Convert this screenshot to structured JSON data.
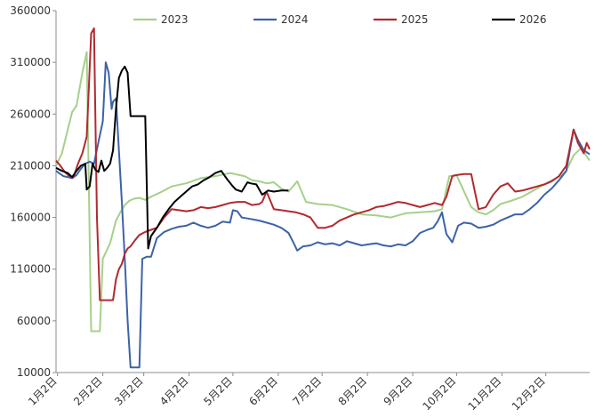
{
  "chart_data": {
    "type": "line",
    "title": "",
    "xlabel": "",
    "ylabel": "",
    "ylim": [
      10000,
      360000
    ],
    "yticks": [
      10000,
      60000,
      110000,
      160000,
      210000,
      260000,
      310000,
      360000
    ],
    "ytick_labels": [
      "10000",
      "60000",
      "110000",
      "160000",
      "210000",
      "260000",
      "310000",
      "360000"
    ],
    "xticks": [
      "1月2日",
      "2月2日",
      "3月2日",
      "4月2日",
      "5月2日",
      "6月2日",
      "7月2日",
      "8月2日",
      "9月2日",
      "10月2日",
      "11月2日",
      "12月2日"
    ],
    "x_unit": "day-of-year",
    "xlim": [
      1,
      366
    ],
    "grid": false,
    "legend": "top",
    "colors": {
      "2023": "#a6d08a",
      "2024": "#3b63a8",
      "2025": "#b2292e",
      "2026": "#000000"
    },
    "series": [
      {
        "name": "2023",
        "color": "#a6d08a",
        "x": [
          1,
          5,
          9,
          12,
          15,
          19,
          22,
          25,
          28,
          31,
          33,
          38,
          42,
          45,
          48,
          51,
          54,
          58,
          62,
          66,
          72,
          80,
          90,
          100,
          110,
          120,
          130,
          135,
          140,
          145,
          150,
          155,
          160,
          166,
          172,
          180,
          190,
          200,
          210,
          220,
          230,
          240,
          250,
          260,
          265,
          270,
          275,
          285,
          290,
          295,
          300,
          305,
          312,
          320,
          330,
          340,
          346,
          350,
          355,
          360,
          366
        ],
        "y": [
          210000,
          222000,
          245000,
          262000,
          268000,
          300000,
          320000,
          50000,
          50000,
          50000,
          120000,
          135000,
          157000,
          165000,
          172000,
          176000,
          178000,
          179000,
          177000,
          180000,
          184000,
          190000,
          193000,
          198000,
          200000,
          203000,
          200000,
          196000,
          195000,
          193000,
          194000,
          188000,
          185000,
          195000,
          175000,
          173000,
          172000,
          168000,
          163000,
          162000,
          160000,
          164000,
          165000,
          166000,
          168000,
          200000,
          201000,
          170000,
          165000,
          163000,
          167000,
          173000,
          176000,
          180000,
          188000,
          196000,
          200000,
          205000,
          220000,
          227000,
          215000
        ]
      },
      {
        "name": "2024",
        "color": "#3b63a8",
        "x": [
          1,
          3,
          6,
          9,
          12,
          15,
          18,
          21,
          24,
          27,
          30,
          33,
          35,
          37,
          39,
          40,
          42,
          44,
          46,
          48,
          50,
          52,
          55,
          58,
          60,
          63,
          66,
          70,
          75,
          80,
          85,
          90,
          95,
          100,
          105,
          110,
          115,
          120,
          122,
          125,
          128,
          132,
          136,
          140,
          145,
          150,
          155,
          160,
          164,
          166,
          170,
          175,
          180,
          185,
          190,
          195,
          200,
          205,
          210,
          215,
          220,
          225,
          230,
          235,
          240,
          245,
          250,
          255,
          259,
          262,
          265,
          268,
          272,
          276,
          280,
          285,
          290,
          295,
          300,
          305,
          310,
          315,
          320,
          325,
          330,
          335,
          340,
          345,
          350,
          355,
          358,
          362,
          366
        ],
        "y": [
          205000,
          203000,
          200000,
          199000,
          198000,
          201000,
          207000,
          212000,
          214000,
          212000,
          233000,
          253000,
          310000,
          300000,
          265000,
          272000,
          275000,
          225000,
          175000,
          120000,
          60000,
          15000,
          15000,
          15000,
          120000,
          122000,
          122000,
          140000,
          146000,
          149000,
          151000,
          152000,
          155000,
          152000,
          150000,
          152000,
          156000,
          155000,
          167000,
          166000,
          160000,
          159000,
          158000,
          157000,
          155000,
          153000,
          150000,
          145000,
          134000,
          128000,
          132000,
          133000,
          136000,
          134000,
          135000,
          133000,
          137000,
          135000,
          133000,
          134000,
          135000,
          133000,
          132000,
          134000,
          133000,
          137000,
          145000,
          148000,
          150000,
          156000,
          165000,
          144000,
          136000,
          152000,
          155000,
          154000,
          150000,
          151000,
          153000,
          157000,
          160000,
          163000,
          163000,
          168000,
          174000,
          182000,
          188000,
          196000,
          205000,
          245000,
          235000,
          225000,
          221000
        ]
      },
      {
        "name": "2025",
        "color": "#b2292e",
        "x": [
          1,
          4,
          7,
          10,
          13,
          16,
          19,
          22,
          25,
          27,
          29,
          31,
          33,
          35,
          38,
          40,
          42,
          44,
          46,
          48,
          50,
          52,
          55,
          58,
          62,
          66,
          70,
          75,
          80,
          85,
          90,
          95,
          100,
          105,
          110,
          115,
          120,
          125,
          130,
          135,
          140,
          142,
          145,
          150,
          155,
          160,
          165,
          170,
          175,
          180,
          185,
          190,
          195,
          200,
          205,
          210,
          215,
          220,
          225,
          230,
          235,
          240,
          245,
          250,
          255,
          260,
          265,
          268,
          272,
          275,
          280,
          285,
          290,
          295,
          300,
          305,
          310,
          315,
          320,
          325,
          330,
          335,
          340,
          345,
          350,
          355,
          358,
          362,
          364,
          366
        ],
        "y": [
          215000,
          210000,
          204000,
          200000,
          199000,
          212000,
          222000,
          238000,
          338000,
          343000,
          160000,
          80000,
          80000,
          80000,
          80000,
          80000,
          100000,
          110000,
          115000,
          125000,
          130000,
          132000,
          138000,
          143000,
          146000,
          148000,
          150000,
          160000,
          168000,
          167000,
          166000,
          167000,
          170000,
          169000,
          170000,
          172000,
          174000,
          175000,
          175000,
          172000,
          173000,
          175000,
          185000,
          168000,
          167000,
          166000,
          165000,
          163000,
          160000,
          150000,
          150000,
          152000,
          157000,
          160000,
          163000,
          165000,
          167000,
          170000,
          171000,
          173000,
          175000,
          174000,
          172000,
          170000,
          172000,
          174000,
          172000,
          180000,
          200000,
          201000,
          202000,
          202000,
          168000,
          170000,
          182000,
          190000,
          193000,
          185000,
          186000,
          188000,
          190000,
          192000,
          195000,
          200000,
          210000,
          245000,
          232000,
          222000,
          232000,
          226000
        ]
      },
      {
        "name": "2026",
        "color": "#000000",
        "x": [
          1,
          5,
          9,
          12,
          15,
          18,
          21,
          22,
          24,
          26,
          28,
          30,
          32,
          34,
          36,
          38,
          40,
          42,
          44,
          46,
          48,
          50,
          52,
          55,
          58,
          60,
          62,
          64,
          66,
          70,
          74,
          78,
          82,
          86,
          90,
          94,
          98,
          102,
          106,
          110,
          114,
          118,
          122,
          124,
          128,
          132,
          134,
          138,
          142,
          146,
          150,
          155,
          160
        ],
        "y": [
          208000,
          205000,
          203000,
          199000,
          205000,
          210000,
          212000,
          187000,
          190000,
          212000,
          206000,
          204000,
          215000,
          205000,
          208000,
          212000,
          225000,
          265000,
          295000,
          302000,
          306000,
          300000,
          258000,
          258000,
          258000,
          258000,
          258000,
          130000,
          142000,
          150000,
          160000,
          168000,
          175000,
          180000,
          185000,
          190000,
          192000,
          196000,
          199000,
          203000,
          205000,
          197000,
          190000,
          187000,
          185000,
          194000,
          193000,
          192000,
          182000,
          186000,
          185000,
          186000,
          186000
        ]
      }
    ]
  }
}
